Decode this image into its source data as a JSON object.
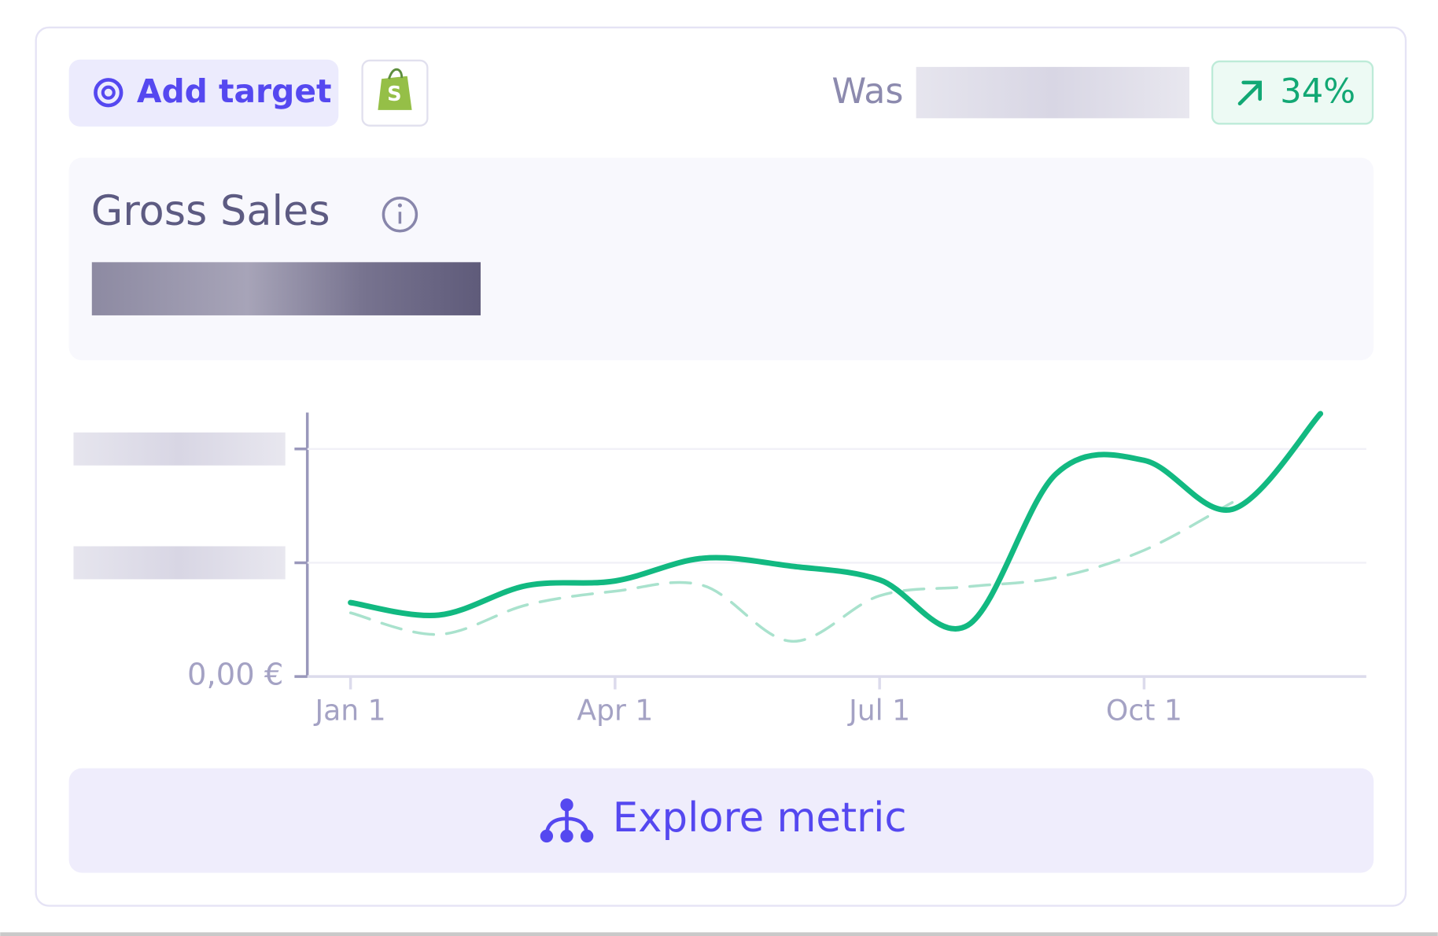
{
  "header": {
    "add_target": "Add target",
    "was": "Was",
    "change": "34%"
  },
  "metric": {
    "title": "Gross Sales"
  },
  "chart_data": {
    "type": "line",
    "x": [
      0,
      1,
      2,
      3,
      4,
      5,
      6,
      7,
      8,
      9,
      10,
      11
    ],
    "xlim": [
      -0.49,
      11.52
    ],
    "xticks": [
      {
        "value": 0,
        "label": "Jan 1"
      },
      {
        "value": 3,
        "label": "Apr 1"
      },
      {
        "value": 6,
        "label": "Jul 1"
      },
      {
        "value": 9,
        "label": "Oct 1"
      }
    ],
    "ylim": [
      0,
      2.32
    ],
    "yticks": [
      {
        "value": 0,
        "label": "0,00 €"
      },
      {
        "value": 1,
        "label": null
      },
      {
        "value": 2,
        "label": null
      }
    ],
    "grid": true,
    "series": [
      {
        "color": "#12b981",
        "style": "solid",
        "values": [
          0.65,
          0.54,
          0.8,
          0.84,
          1.04,
          0.97,
          0.85,
          0.45,
          1.78,
          1.9,
          1.47,
          2.31
        ]
      },
      {
        "color": "#a9e2cd",
        "style": "dashed",
        "values": [
          0.56,
          0.37,
          0.63,
          0.75,
          0.8,
          0.31,
          0.71,
          0.79,
          0.87,
          1.11,
          1.53,
          null
        ]
      }
    ]
  },
  "footer": {
    "button": "Explore metric"
  }
}
